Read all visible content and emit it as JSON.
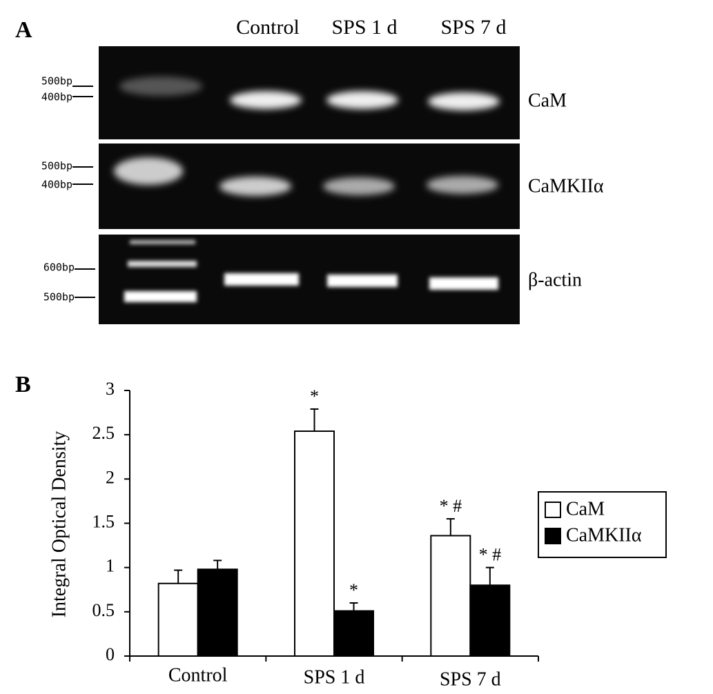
{
  "panel_a": {
    "label": "A",
    "lanes": [
      "Control",
      "SPS 1 d",
      "SPS 7 d"
    ],
    "gels": [
      {
        "gene": "CaM",
        "markers": [
          "500bp",
          "400bp"
        ]
      },
      {
        "gene": "CaMKIIα",
        "markers": [
          "500bp",
          "400bp"
        ]
      },
      {
        "gene": "β-actin",
        "markers": [
          "600bp",
          "500bp"
        ]
      }
    ]
  },
  "panel_b_label": "B",
  "chart_data": {
    "type": "bar",
    "y_label": "Integral Optical Density",
    "categories": [
      "Control",
      "SPS 1 d",
      "SPS 7 d"
    ],
    "series": [
      {
        "name": "CaM",
        "color": "#ffffff",
        "values": [
          0.82,
          2.54,
          1.36
        ],
        "errors": [
          0.15,
          0.25,
          0.19
        ],
        "annotations": [
          null,
          "*",
          "* #"
        ]
      },
      {
        "name": "CaMKIIα",
        "color": "#000000",
        "values": [
          0.98,
          0.51,
          0.8
        ],
        "errors": [
          0.1,
          0.09,
          0.2
        ],
        "annotations": [
          null,
          "*",
          "* #"
        ]
      }
    ],
    "ylim": [
      0,
      3
    ],
    "yticks": [
      0,
      0.5,
      1,
      1.5,
      2,
      2.5,
      3
    ],
    "legend": "right",
    "grid": false
  }
}
